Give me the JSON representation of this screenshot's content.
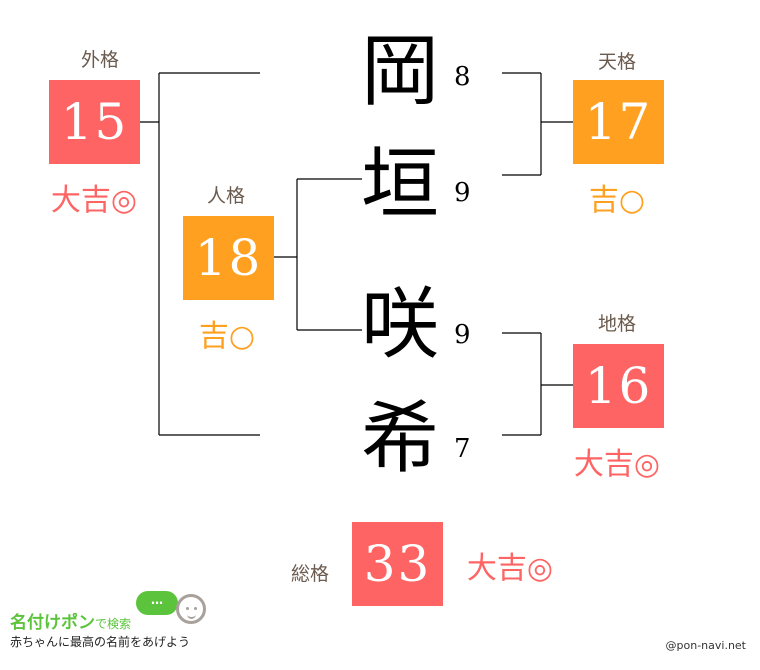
{
  "name_chars": [
    {
      "char": "岡",
      "strokes": "8"
    },
    {
      "char": "垣",
      "strokes": "9"
    },
    {
      "char": "咲",
      "strokes": "9"
    },
    {
      "char": "希",
      "strokes": "7"
    }
  ],
  "gaikaku": {
    "label": "外格",
    "value": "15",
    "fortune": "大吉◎"
  },
  "jinkaku": {
    "label": "人格",
    "value": "18",
    "fortune": "吉○"
  },
  "tenkaku": {
    "label": "天格",
    "value": "17",
    "fortune": "吉○"
  },
  "chikaku": {
    "label": "地格",
    "value": "16",
    "fortune": "大吉◎"
  },
  "soukaku": {
    "label": "総格",
    "value": "33",
    "fortune": "大吉◎"
  },
  "colors": {
    "daikichi": "#ff6464",
    "kichi": "#ffa020",
    "label": "#6b5b4e"
  },
  "logo": {
    "title": "名付けポン",
    "title_suffix": "で検索",
    "tagline": "赤ちゃんに最高の名前をあげよう",
    "bubble": "…"
  },
  "credit": "@pon-navi.net"
}
